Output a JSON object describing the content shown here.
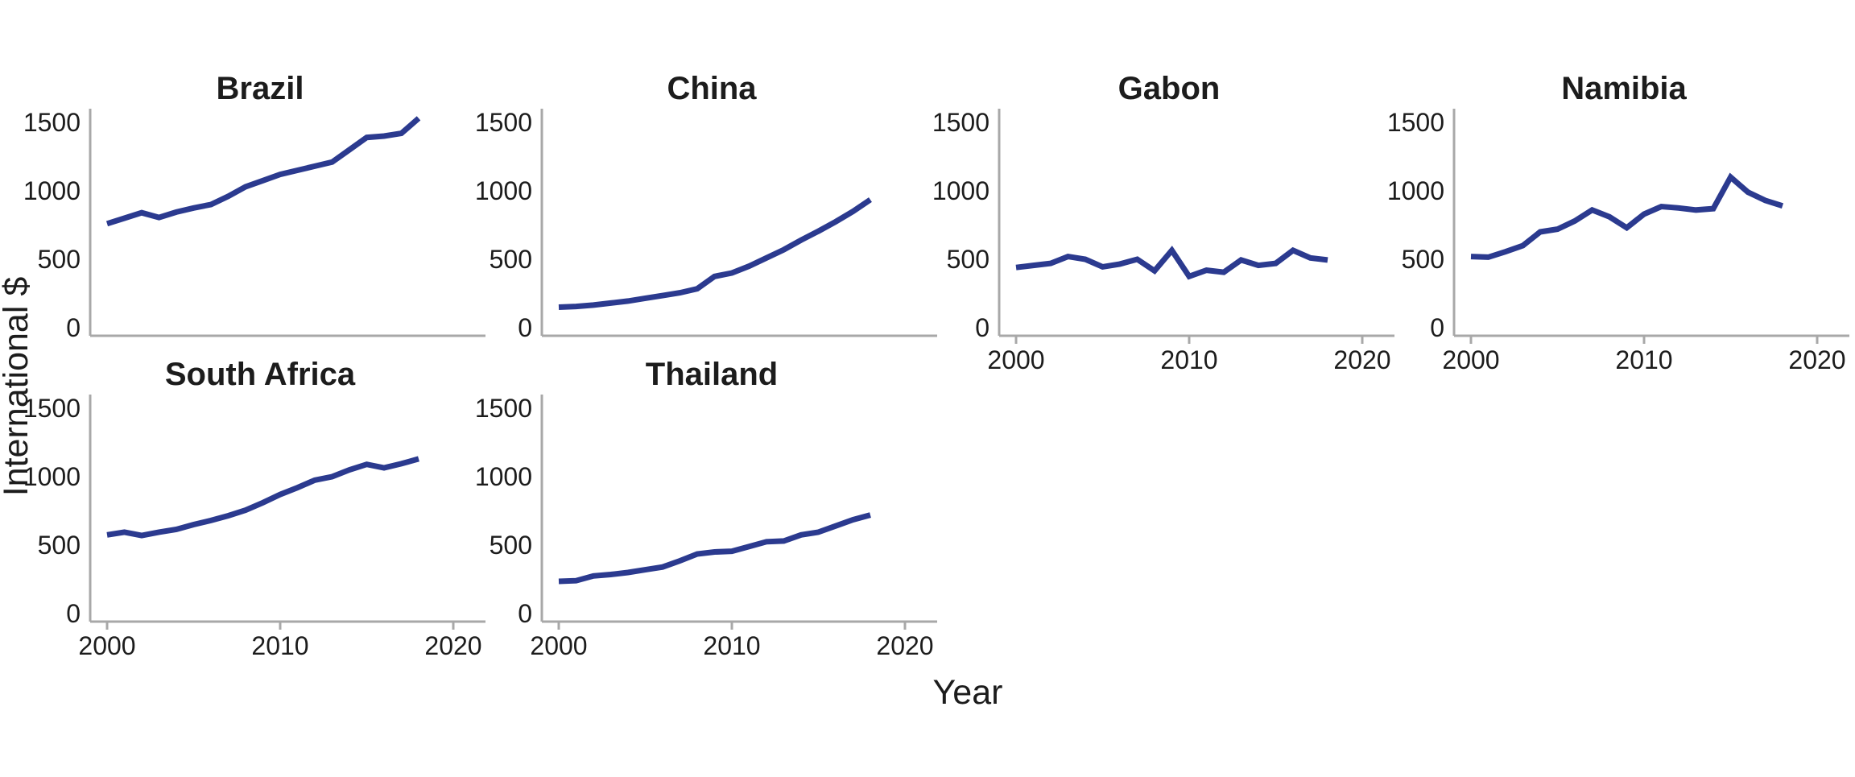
{
  "chart_data": {
    "type": "line",
    "title": "",
    "xlabel": "Year",
    "ylabel": "International $",
    "x": [
      2000,
      2001,
      2002,
      2003,
      2004,
      2005,
      2006,
      2007,
      2008,
      2009,
      2010,
      2011,
      2012,
      2013,
      2014,
      2015,
      2016,
      2017,
      2018
    ],
    "x_ticks": [
      2000,
      2010,
      2020
    ],
    "y_ticks": [
      0,
      500,
      1000,
      1500
    ],
    "xlim": [
      1999,
      2022
    ],
    "ylim": [
      0,
      1600
    ],
    "grid": false,
    "legend": "none",
    "line_color": "#2b3a8f",
    "axis_color": "#a8a8a8",
    "text_color": "#1c1c1c",
    "facets": [
      {
        "name": "Brazil",
        "values": [
          760,
          800,
          840,
          805,
          845,
          875,
          900,
          960,
          1030,
          1075,
          1120,
          1150,
          1180,
          1210,
          1300,
          1390,
          1400,
          1420,
          1530
        ]
      },
      {
        "name": "China",
        "values": [
          150,
          155,
          165,
          180,
          195,
          215,
          235,
          255,
          285,
          375,
          400,
          450,
          510,
          570,
          640,
          705,
          775,
          850,
          935
        ]
      },
      {
        "name": "Gabon",
        "values": [
          440,
          455,
          470,
          520,
          500,
          445,
          465,
          500,
          415,
          565,
          375,
          420,
          405,
          495,
          455,
          470,
          565,
          510,
          495
        ]
      },
      {
        "name": "Namibia",
        "values": [
          520,
          515,
          555,
          600,
          700,
          720,
          780,
          860,
          810,
          730,
          830,
          885,
          875,
          860,
          870,
          1100,
          990,
          930,
          890
        ]
      },
      {
        "name": "South Africa",
        "values": [
          575,
          595,
          570,
          595,
          615,
          650,
          680,
          715,
          755,
          810,
          870,
          920,
          975,
          1000,
          1050,
          1090,
          1065,
          1095,
          1130
        ]
      },
      {
        "name": "Thailand",
        "values": [
          235,
          240,
          275,
          285,
          300,
          320,
          340,
          385,
          435,
          450,
          455,
          490,
          525,
          530,
          575,
          595,
          640,
          685,
          720
        ]
      }
    ]
  }
}
